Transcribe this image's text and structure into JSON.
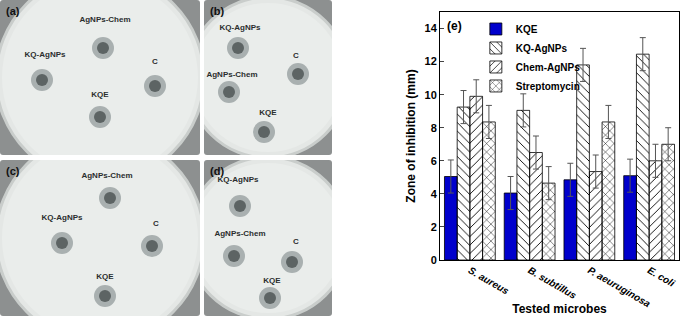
{
  "chart_data": {
    "type": "bar",
    "panel_label": "(e)",
    "x_label": "Tested microbes",
    "y_label": "Zone of inhibition (mm)",
    "categories": [
      "S. aureus",
      "B. subtillus",
      "P. aeuruginosa",
      "E. coli"
    ],
    "series": [
      {
        "name": "KQE",
        "color": "#0000cc",
        "values": [
          5.05,
          4.05,
          4.85,
          5.1
        ],
        "errors": [
          1.0,
          1.0,
          1.0,
          1.0
        ]
      },
      {
        "name": "KQ-AgNPs",
        "color": "#33ffff",
        "values": [
          9.25,
          9.05,
          11.8,
          12.45
        ],
        "errors": [
          1.0,
          1.0,
          1.0,
          1.0
        ]
      },
      {
        "name": "Chem-AgNPs",
        "color": "#ffff33",
        "values": [
          9.9,
          6.5,
          5.35,
          6.0
        ],
        "errors": [
          1.0,
          1.0,
          1.0,
          1.0
        ]
      },
      {
        "name": "Streptomycin",
        "color": "#ff0000",
        "values": [
          8.35,
          4.65,
          8.35,
          7.0
        ],
        "errors": [
          1.0,
          1.0,
          1.0,
          1.0
        ]
      }
    ],
    "ylim": [
      0,
      15
    ],
    "yticks": [
      0,
      2,
      4,
      6,
      8,
      10,
      12,
      14
    ],
    "legend": "upper left"
  },
  "plates": [
    {
      "label": "(a)",
      "spots": [
        "AgNPs-Chem",
        "KQ-AgNPs",
        "C",
        "KQE"
      ]
    },
    {
      "label": "(b)",
      "spots": [
        "KQ-AgNPs",
        "C",
        "AgNPs-Chem",
        "KQE"
      ]
    },
    {
      "label": "(c)",
      "spots": [
        "AgNPs-Chem",
        "KQ-AgNPs",
        "C",
        "KQE"
      ]
    },
    {
      "label": "(d)",
      "spots": [
        "KQ-AgNPs",
        "AgNPs-Chem",
        "C",
        "KQE"
      ]
    }
  ]
}
